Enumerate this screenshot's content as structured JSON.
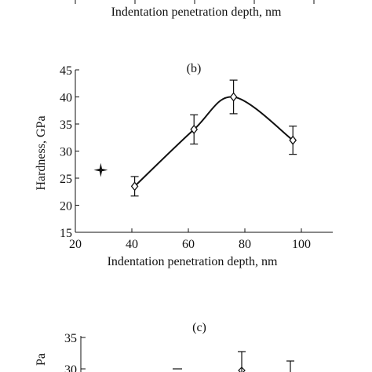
{
  "chart_data": [
    {
      "panel": "a",
      "type": "line",
      "xlabel": "Indentation penetration depth, nm",
      "partially_visible": true
    },
    {
      "panel": "b",
      "type": "line",
      "title": "(b)",
      "xlabel": "Indentation penetration depth, nm",
      "ylabel": "Hardness, GPa",
      "xlim": [
        20,
        110
      ],
      "ylim": [
        15,
        45
      ],
      "x_ticks": [
        20,
        40,
        60,
        80,
        100
      ],
      "y_ticks": [
        15,
        20,
        25,
        30,
        35,
        40,
        45
      ],
      "series": [
        {
          "marker": "diamond",
          "smooth": true,
          "color": "#111111",
          "points": [
            {
              "x": 41,
              "y": 23.5,
              "err": 1.8
            },
            {
              "x": 62,
              "y": 34.0,
              "err": 2.7
            },
            {
              "x": 76,
              "y": 40.0,
              "err": 3.1
            },
            {
              "x": 97,
              "y": 32.0,
              "err": 2.6
            }
          ]
        }
      ],
      "extra_marker": {
        "x": 29,
        "y": 26.5,
        "shape": "four-point star"
      },
      "grid": false
    },
    {
      "panel": "c",
      "type": "line",
      "title": "(c)",
      "ylabel": "Pa",
      "ylim_top": 35,
      "y_ticks_visible": [
        30,
        35
      ],
      "partially_visible": true
    }
  ]
}
